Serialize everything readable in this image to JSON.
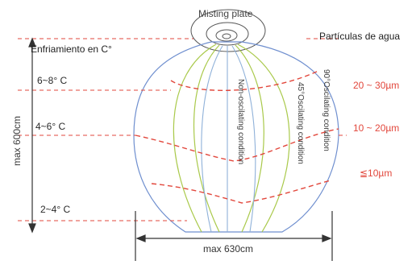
{
  "misting_plate_label": "Misting plate",
  "cooling_label": "Enfriamiento en C°",
  "particles_label": "Partículas de agua",
  "temperature_zones": [
    "6~8° C",
    "4~6° C",
    "2~4° C"
  ],
  "particle_sizes": [
    "20 ~ 30µm",
    "10 ~ 20µm",
    "≦10µm"
  ],
  "height_label": "max 600cm",
  "width_label": "max 630cm",
  "conditions": {
    "non_oscillating": "Non-oscilating condition",
    "oscillating_45": "45°Oscilating condition",
    "oscillating_90": "90°Oscilating condition"
  },
  "colors": {
    "red_dash": "#e2473c",
    "green_curve": "#a9c94a",
    "blue_curve": "#6f8fcf",
    "outline": "#6a6a6a"
  }
}
